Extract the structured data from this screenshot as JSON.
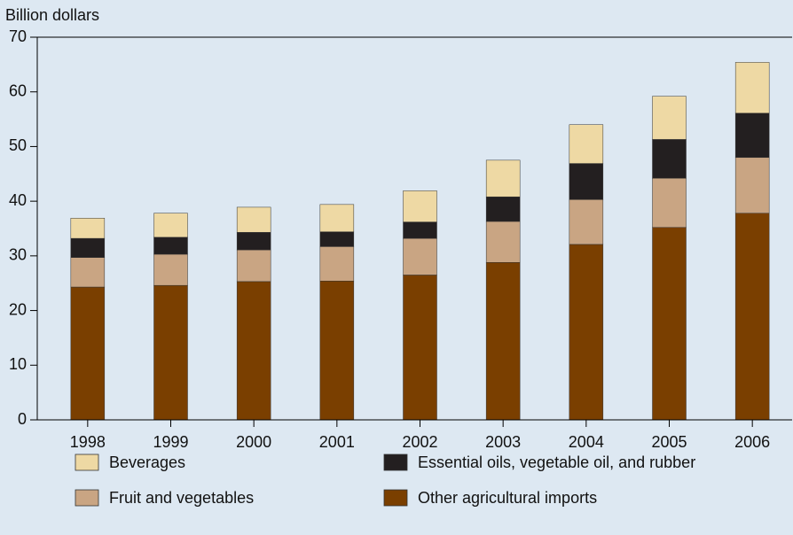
{
  "chart_data": {
    "type": "stacked_bar",
    "y_label": "Billion dollars",
    "categories": [
      "1998",
      "1999",
      "2000",
      "2001",
      "2002",
      "2003",
      "2004",
      "2005",
      "2006"
    ],
    "series": [
      {
        "name": "Other agricultural imports",
        "color": "#7a3f00",
        "values": [
          24.3,
          24.6,
          25.3,
          25.4,
          26.5,
          28.8,
          32.1,
          35.2,
          37.8
        ]
      },
      {
        "name": "Fruit and vegetables",
        "color": "#c9a583",
        "values": [
          5.4,
          5.7,
          5.8,
          6.3,
          6.7,
          7.5,
          8.2,
          9.0,
          10.2
        ]
      },
      {
        "name": "Essential oils, vegetable oil, and rubber",
        "color": "#231f20",
        "values": [
          3.5,
          3.1,
          3.2,
          2.7,
          3.0,
          4.5,
          6.6,
          7.1,
          8.1
        ]
      },
      {
        "name": "Beverages",
        "color": "#eed9a4",
        "values": [
          3.7,
          4.4,
          4.6,
          5.0,
          5.7,
          6.7,
          7.1,
          7.9,
          9.3
        ]
      }
    ],
    "ylim": [
      0,
      70
    ],
    "yticks": [
      0,
      10,
      20,
      30,
      40,
      50,
      60,
      70
    ]
  }
}
